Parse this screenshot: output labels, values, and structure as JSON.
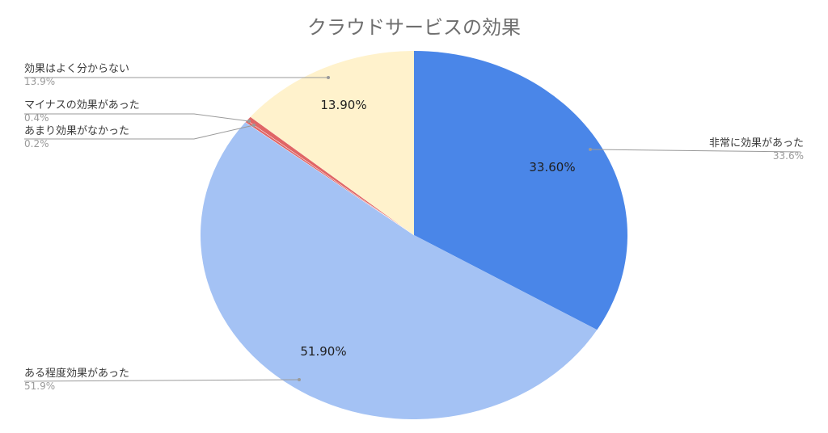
{
  "chart_data": {
    "type": "pie",
    "title": "クラウドサービスの効果",
    "start_angle_deg": 0,
    "direction": "clockwise",
    "slices": [
      {
        "label": "非常に効果があった",
        "value": 33.6,
        "value_text": "33.6%",
        "inner_label": "33.60%",
        "color": "#4a86e8"
      },
      {
        "label": "ある程度効果があった",
        "value": 51.9,
        "value_text": "51.9%",
        "inner_label": "51.90%",
        "color": "#a4c2f4"
      },
      {
        "label": "あまり効果がなかった",
        "value": 0.2,
        "value_text": "0.2%",
        "inner_label": "",
        "color": "#e06666"
      },
      {
        "label": "マイナスの効果があった",
        "value": 0.4,
        "value_text": "0.4%",
        "inner_label": "",
        "color": "#e06666"
      },
      {
        "label": "効果はよく分からない",
        "value": 13.9,
        "value_text": "13.9%",
        "inner_label": "13.90%",
        "color": "#fff2cc"
      }
    ]
  }
}
